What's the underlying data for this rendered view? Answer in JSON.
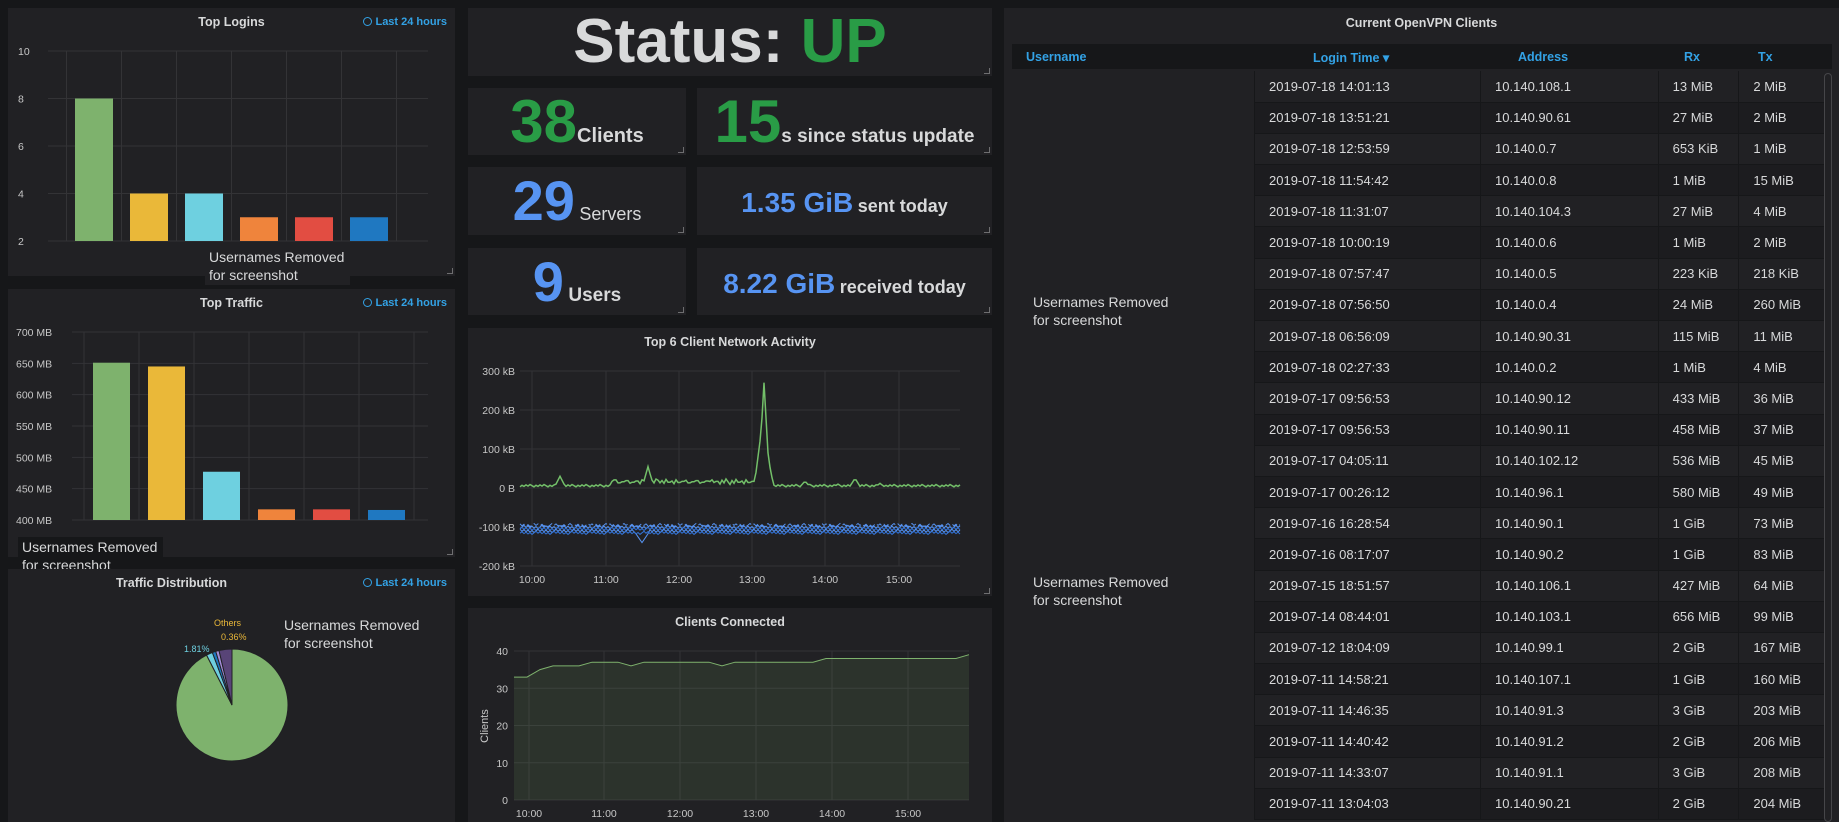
{
  "colors": {
    "green": "#7eb26d",
    "yellow": "#eab839",
    "cyan": "#6ed0e0",
    "orange": "#ef843c",
    "red": "#e24d42",
    "blue": "#1f78c1",
    "status_up": "#299c46",
    "stat_blue": "#5794f2",
    "link": "#33a2e5",
    "net_green": "#73bf69",
    "net_blue": "#5794f2"
  },
  "overlay_note": "Usernames Removed\nfor screenshot",
  "top_logins": {
    "title": "Top Logins",
    "range": "Last 24 hours",
    "note": "Usernames Removed for screenshot",
    "chart_data": {
      "type": "bar",
      "yticks": [
        "10",
        "8",
        "6",
        "4",
        "2"
      ],
      "ylim": [
        2,
        10
      ],
      "values": [
        8,
        4,
        4,
        3,
        3,
        3
      ],
      "colors": [
        "#7eb26d",
        "#eab839",
        "#6ed0e0",
        "#ef843c",
        "#e24d42",
        "#1f78c1"
      ]
    }
  },
  "top_traffic": {
    "title": "Top Traffic",
    "range": "Last 24 hours",
    "note": "Usernames Removed for screenshot",
    "chart_data": {
      "type": "bar",
      "yticks": [
        "700 MB",
        "650 MB",
        "600 MB",
        "550 MB",
        "500 MB",
        "450 MB",
        "400 MB"
      ],
      "ylim": [
        400,
        700
      ],
      "unit": "MB",
      "values": [
        651,
        645,
        477,
        417,
        417,
        416
      ],
      "colors": [
        "#7eb26d",
        "#eab839",
        "#6ed0e0",
        "#ef843c",
        "#e24d42",
        "#1f78c1"
      ]
    }
  },
  "traffic_distribution": {
    "title": "Traffic Distribution",
    "range": "Last 24 hours",
    "note": "Usernames Removed for screenshot",
    "chart_data": {
      "type": "pie",
      "slices": [
        {
          "value": 92.5,
          "color": "#7eb26d"
        },
        {
          "value": 1.81,
          "color": "#6ed0e0",
          "label": "1.81%"
        },
        {
          "value": 1.0,
          "color": "#1f78c1"
        },
        {
          "value": 0.96,
          "color": "#a38cd8"
        },
        {
          "value": 3.73,
          "color": "#584477"
        }
      ],
      "labels": [
        "1.81%",
        "Others",
        "0.36%"
      ]
    }
  },
  "status": {
    "label": "Status:",
    "value": "UP"
  },
  "stats": {
    "clients": {
      "value": "38",
      "label": "Clients"
    },
    "since": {
      "value": "15",
      "label": "s since status update"
    },
    "servers": {
      "value": "29",
      "label": "Servers"
    },
    "sent": {
      "value": "1.35 GiB",
      "label": "sent today"
    },
    "users": {
      "value": "9",
      "label": "Users"
    },
    "received": {
      "value": "8.22 GiB",
      "label": "received today"
    }
  },
  "network_activity": {
    "title": "Top 6 Client Network Activity",
    "chart_data": {
      "type": "line",
      "yticks": [
        "300 kB",
        "200 kB",
        "100 kB",
        "0 B",
        "-100 kB",
        "-200 kB"
      ],
      "ylim": [
        -200,
        300
      ],
      "xticks": [
        "10:00",
        "11:00",
        "12:00",
        "13:00",
        "14:00",
        "15:00"
      ]
    }
  },
  "clients_connected": {
    "title": "Clients Connected",
    "chart_data": {
      "type": "area",
      "ylabel": "Clients",
      "yticks": [
        "40",
        "30",
        "20",
        "10",
        "0"
      ],
      "ylim": [
        0,
        40
      ],
      "xticks": [
        "10:00",
        "11:00",
        "12:00",
        "13:00",
        "14:00",
        "15:00"
      ],
      "values": [
        33,
        33,
        35,
        36,
        36,
        36,
        37,
        37,
        37,
        36,
        37,
        37,
        37,
        37,
        37,
        37,
        36,
        37,
        37,
        37,
        37,
        37,
        37,
        37,
        38,
        38,
        38,
        38,
        38,
        38,
        38,
        38,
        38,
        38,
        38,
        39
      ]
    }
  },
  "openvpn": {
    "title": "Current OpenVPN Clients",
    "columns": [
      "Username",
      "Login Time",
      "Address",
      "Rx",
      "Tx"
    ],
    "sort_indicator": "▾",
    "note": "Usernames Removed for screenshot",
    "rows": [
      [
        "2019-07-18 14:01:13",
        "10.140.108.1",
        "13 MiB",
        "2 MiB"
      ],
      [
        "2019-07-18 13:51:21",
        "10.140.90.61",
        "27 MiB",
        "2 MiB"
      ],
      [
        "2019-07-18 12:53:59",
        "10.140.0.7",
        "653 KiB",
        "1 MiB"
      ],
      [
        "2019-07-18 11:54:42",
        "10.140.0.8",
        "1 MiB",
        "15 MiB"
      ],
      [
        "2019-07-18 11:31:07",
        "10.140.104.3",
        "27 MiB",
        "4 MiB"
      ],
      [
        "2019-07-18 10:00:19",
        "10.140.0.6",
        "1 MiB",
        "2 MiB"
      ],
      [
        "2019-07-18 07:57:47",
        "10.140.0.5",
        "223 KiB",
        "218 KiB"
      ],
      [
        "2019-07-18 07:56:50",
        "10.140.0.4",
        "24 MiB",
        "260 MiB"
      ],
      [
        "2019-07-18 06:56:09",
        "10.140.90.31",
        "115 MiB",
        "11 MiB"
      ],
      [
        "2019-07-18 02:27:33",
        "10.140.0.2",
        "1 MiB",
        "4 MiB"
      ],
      [
        "2019-07-17 09:56:53",
        "10.140.90.12",
        "433 MiB",
        "36 MiB"
      ],
      [
        "2019-07-17 09:56:53",
        "10.140.90.11",
        "458 MiB",
        "37 MiB"
      ],
      [
        "2019-07-17 04:05:11",
        "10.140.102.12",
        "536 MiB",
        "45 MiB"
      ],
      [
        "2019-07-17 00:26:12",
        "10.140.96.1",
        "580 MiB",
        "49 MiB"
      ],
      [
        "2019-07-16 16:28:54",
        "10.140.90.1",
        "1 GiB",
        "73 MiB"
      ],
      [
        "2019-07-16 08:17:07",
        "10.140.90.2",
        "1 GiB",
        "83 MiB"
      ],
      [
        "2019-07-15 18:51:57",
        "10.140.106.1",
        "427 MiB",
        "64 MiB"
      ],
      [
        "2019-07-14 08:44:01",
        "10.140.103.1",
        "656 MiB",
        "99 MiB"
      ],
      [
        "2019-07-12 18:04:09",
        "10.140.99.1",
        "2 GiB",
        "167 MiB"
      ],
      [
        "2019-07-11 14:58:21",
        "10.140.107.1",
        "1 GiB",
        "160 MiB"
      ],
      [
        "2019-07-11 14:46:35",
        "10.140.91.3",
        "3 GiB",
        "203 MiB"
      ],
      [
        "2019-07-11 14:40:42",
        "10.140.91.2",
        "2 GiB",
        "206 MiB"
      ],
      [
        "2019-07-11 14:33:07",
        "10.140.91.1",
        "3 GiB",
        "208 MiB"
      ],
      [
        "2019-07-11 13:04:03",
        "10.140.90.21",
        "2 GiB",
        "204 MiB"
      ]
    ]
  }
}
